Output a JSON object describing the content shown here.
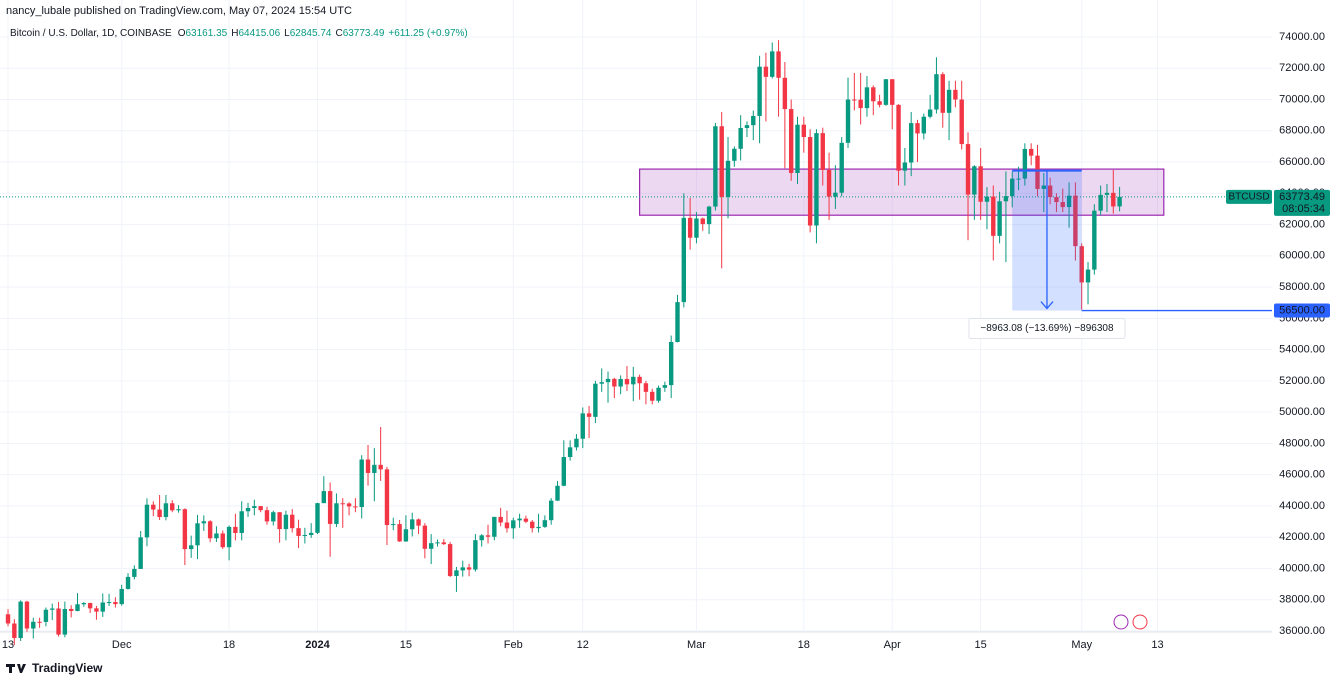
{
  "header": "nancy_lubale published on TradingView.com, May 07, 2024 15:54 UTC",
  "footer": "TradingView",
  "chart_data": {
    "type": "candlestick",
    "title": "Bitcoin / U.S. Dollar, 1D, COINBASE",
    "legend_items": [
      {
        "label": "O",
        "value": 63161.35
      },
      {
        "label": "H",
        "value": 64415.06
      },
      {
        "label": "L",
        "value": 62845.74
      },
      {
        "label": "C",
        "value": 63773.49
      }
    ],
    "change": "+611.25 (+0.97%)",
    "up_color": "#089981",
    "down_color": "#f23645",
    "grid": true,
    "xlim": [
      -1.27,
      200.13
    ],
    "ylim": [
      35936,
      76367
    ],
    "xticks": [
      {
        "value": 0,
        "label": "13"
      },
      {
        "value": 18,
        "label": "Dec"
      },
      {
        "value": 35,
        "label": "18"
      },
      {
        "value": 49,
        "label": "2024"
      },
      {
        "value": 63,
        "label": "15"
      },
      {
        "value": 80,
        "label": "Feb"
      },
      {
        "value": 91,
        "label": "12"
      },
      {
        "value": 109,
        "label": "Mar"
      },
      {
        "value": 126,
        "label": "18"
      },
      {
        "value": 140,
        "label": "Apr"
      },
      {
        "value": 154,
        "label": "15"
      },
      {
        "value": 170,
        "label": "May"
      },
      {
        "value": 182,
        "label": "13"
      }
    ],
    "yticks": [
      {
        "value": 36000,
        "label": "36000.00"
      },
      {
        "value": 38000,
        "label": "38000.00"
      },
      {
        "value": 40000,
        "label": "40000.00"
      },
      {
        "value": 42000,
        "label": "42000.00"
      },
      {
        "value": 44000,
        "label": "44000.00"
      },
      {
        "value": 46000,
        "label": "46000.00"
      },
      {
        "value": 48000,
        "label": "48000.00"
      },
      {
        "value": 50000,
        "label": "50000.00"
      },
      {
        "value": 52000,
        "label": "52000.00"
      },
      {
        "value": 54000,
        "label": "54000.00"
      },
      {
        "value": 56000,
        "label": "56000.00"
      },
      {
        "value": 58000,
        "label": "58000.00"
      },
      {
        "value": 60000,
        "label": "60000.00"
      },
      {
        "value": 62000,
        "label": "62000.00"
      },
      {
        "value": 64000,
        "label": "64000.00"
      },
      {
        "value": 66000,
        "label": "66000.00"
      },
      {
        "value": 68000,
        "label": "68000.00"
      },
      {
        "value": 70000,
        "label": "70000.00"
      },
      {
        "value": 72000,
        "label": "72000.00"
      },
      {
        "value": 74000,
        "label": "74000.00"
      }
    ],
    "x": [
      0,
      1,
      2,
      3,
      4,
      5,
      6,
      7,
      8,
      9,
      10,
      11,
      12,
      13,
      14,
      15,
      16,
      17,
      18,
      19,
      20,
      21,
      22,
      23,
      24,
      25,
      26,
      27,
      28,
      29,
      30,
      31,
      32,
      33,
      34,
      35,
      36,
      37,
      38,
      39,
      40,
      41,
      42,
      43,
      44,
      45,
      46,
      47,
      48,
      49,
      50,
      51,
      52,
      53,
      54,
      55,
      56,
      57,
      58,
      59,
      60,
      61,
      62,
      63,
      64,
      65,
      66,
      67,
      68,
      69,
      70,
      71,
      72,
      73,
      74,
      75,
      76,
      77,
      78,
      79,
      80,
      81,
      82,
      83,
      84,
      85,
      86,
      87,
      88,
      89,
      90,
      91,
      92,
      93,
      94,
      95,
      96,
      97,
      98,
      99,
      100,
      101,
      102,
      103,
      104,
      105,
      106,
      107,
      108,
      109,
      110,
      111,
      112,
      113,
      114,
      115,
      116,
      117,
      118,
      119,
      120,
      121,
      122,
      123,
      124,
      125,
      126,
      127,
      128,
      129,
      130,
      131,
      132,
      133,
      134,
      135,
      136,
      137,
      138,
      139,
      140,
      141,
      142,
      143,
      144,
      145,
      146,
      147,
      148,
      149,
      150,
      151,
      152,
      153,
      154,
      155,
      156,
      157,
      158,
      159,
      160,
      161,
      162,
      163,
      164,
      165,
      166,
      167,
      168,
      169,
      170,
      171,
      172,
      173,
      174,
      175,
      176
    ],
    "ohlc": [
      [
        37070,
        37400,
        36300,
        36480
      ],
      [
        36480,
        36760,
        35100,
        35550
      ],
      [
        35550,
        37960,
        35360,
        37880
      ],
      [
        37880,
        37930,
        35950,
        36160
      ],
      [
        36160,
        36850,
        35520,
        36590
      ],
      [
        36590,
        36850,
        36200,
        36580
      ],
      [
        36580,
        37500,
        36300,
        37360
      ],
      [
        37360,
        37750,
        36700,
        37440
      ],
      [
        37440,
        37860,
        35650,
        35770
      ],
      [
        35770,
        37880,
        35600,
        37410
      ],
      [
        37410,
        37650,
        36870,
        37280
      ],
      [
        37280,
        38420,
        37260,
        37710
      ],
      [
        37710,
        37850,
        37550,
        37790
      ],
      [
        37790,
        37810,
        37150,
        37450
      ],
      [
        37450,
        37600,
        36720,
        37240
      ],
      [
        37240,
        38400,
        36900,
        37820
      ],
      [
        37820,
        38380,
        37600,
        37850
      ],
      [
        37850,
        38160,
        37500,
        37720
      ],
      [
        37720,
        38960,
        37620,
        38690
      ],
      [
        38690,
        39700,
        38650,
        39460
      ],
      [
        39460,
        40200,
        39300,
        39970
      ],
      [
        39970,
        42400,
        39970,
        41990
      ],
      [
        41990,
        44490,
        41420,
        44080
      ],
      [
        44080,
        44300,
        43350,
        43770
      ],
      [
        43770,
        44700,
        43100,
        43290
      ],
      [
        43290,
        44700,
        43080,
        44170
      ],
      [
        44170,
        44370,
        43600,
        43720
      ],
      [
        43720,
        44050,
        43570,
        43790
      ],
      [
        43790,
        43850,
        40220,
        41240
      ],
      [
        41240,
        42100,
        40680,
        41480
      ],
      [
        41480,
        43430,
        40600,
        42890
      ],
      [
        42890,
        43400,
        42400,
        43020
      ],
      [
        43020,
        43090,
        41680,
        41930
      ],
      [
        41930,
        42700,
        41700,
        42240
      ],
      [
        42240,
        42430,
        41250,
        41360
      ],
      [
        41360,
        42750,
        40520,
        42660
      ],
      [
        42660,
        43500,
        41800,
        42270
      ],
      [
        42270,
        44300,
        41800,
        43660
      ],
      [
        43660,
        44200,
        43300,
        43870
      ],
      [
        43870,
        44400,
        43400,
        43990
      ],
      [
        43990,
        44000,
        43600,
        43730
      ],
      [
        43730,
        43950,
        42800,
        43010
      ],
      [
        43010,
        43700,
        42750,
        43600
      ],
      [
        43600,
        43600,
        41650,
        42520
      ],
      [
        42520,
        43700,
        41800,
        43440
      ],
      [
        43440,
        43800,
        42300,
        42580
      ],
      [
        42580,
        43120,
        41300,
        42080
      ],
      [
        42080,
        42600,
        41600,
        42140
      ],
      [
        42140,
        42900,
        41960,
        42280
      ],
      [
        42280,
        44200,
        42200,
        44180
      ],
      [
        44180,
        45900,
        44180,
        44950
      ],
      [
        44950,
        45500,
        40750,
        42850
      ],
      [
        42850,
        44800,
        42650,
        44170
      ],
      [
        44170,
        44500,
        42600,
        44160
      ],
      [
        44160,
        44230,
        43400,
        43970
      ],
      [
        43970,
        44500,
        43600,
        43930
      ],
      [
        43930,
        47250,
        43200,
        46970
      ],
      [
        46970,
        47900,
        45300,
        46110
      ],
      [
        46110,
        47700,
        44300,
        46630
      ],
      [
        46630,
        49050,
        45600,
        46340
      ],
      [
        46340,
        46500,
        41500,
        42780
      ],
      [
        42780,
        43250,
        42450,
        42840
      ],
      [
        42840,
        43100,
        41700,
        41730
      ],
      [
        41730,
        43400,
        41700,
        42510
      ],
      [
        42510,
        43570,
        42050,
        43140
      ],
      [
        43140,
        43200,
        42200,
        42740
      ],
      [
        42740,
        42900,
        40650,
        41260
      ],
      [
        41260,
        42200,
        40280,
        41620
      ],
      [
        41620,
        41850,
        41400,
        41670
      ],
      [
        41670,
        41880,
        41500,
        41560
      ],
      [
        41560,
        41700,
        39450,
        39520
      ],
      [
        39520,
        40100,
        38500,
        39880
      ],
      [
        39880,
        40500,
        39480,
        40070
      ],
      [
        40070,
        40300,
        39500,
        39930
      ],
      [
        39930,
        42200,
        39800,
        41810
      ],
      [
        41810,
        42200,
        41400,
        42120
      ],
      [
        42120,
        42800,
        41600,
        42030
      ],
      [
        42030,
        43300,
        41800,
        43300
      ],
      [
        43300,
        43880,
        42700,
        42940
      ],
      [
        42940,
        43700,
        42300,
        42570
      ],
      [
        42570,
        43250,
        41900,
        43080
      ],
      [
        43080,
        43500,
        42600,
        43190
      ],
      [
        43190,
        43380,
        42900,
        42990
      ],
      [
        42990,
        43100,
        42300,
        42580
      ],
      [
        42580,
        43500,
        42300,
        42660
      ],
      [
        42660,
        43400,
        42600,
        43090
      ],
      [
        43090,
        44500,
        42800,
        44340
      ],
      [
        44340,
        45600,
        44320,
        45290
      ],
      [
        45290,
        48200,
        45260,
        47130
      ],
      [
        47130,
        48200,
        46900,
        47750
      ],
      [
        47750,
        48600,
        47550,
        48300
      ],
      [
        48300,
        50300,
        47700,
        49920
      ],
      [
        49920,
        50400,
        48350,
        49700
      ],
      [
        49700,
        52000,
        49300,
        51820
      ],
      [
        51820,
        52800,
        51300,
        51920
      ],
      [
        51920,
        52600,
        50600,
        52130
      ],
      [
        52130,
        52200,
        50900,
        51640
      ],
      [
        51640,
        52350,
        51150,
        52120
      ],
      [
        52120,
        52950,
        51350,
        51780
      ],
      [
        51780,
        52900,
        50700,
        52260
      ],
      [
        52260,
        52400,
        50800,
        51850
      ],
      [
        51850,
        52000,
        50500,
        51300
      ],
      [
        51300,
        51500,
        50500,
        50730
      ],
      [
        50730,
        51700,
        50600,
        51560
      ],
      [
        51560,
        51950,
        51300,
        51730
      ],
      [
        51730,
        54900,
        50900,
        54490
      ],
      [
        54490,
        57500,
        54460,
        57040
      ],
      [
        57040,
        64000,
        56700,
        62430
      ],
      [
        62430,
        63700,
        60400,
        61160
      ],
      [
        61160,
        62800,
        60800,
        62390
      ],
      [
        62390,
        62450,
        61600,
        62030
      ],
      [
        62030,
        63200,
        61400,
        63150
      ],
      [
        63150,
        68500,
        62900,
        68290
      ],
      [
        68290,
        69200,
        59200,
        63770
      ],
      [
        63770,
        67600,
        62400,
        66080
      ],
      [
        66080,
        67000,
        65700,
        66850
      ],
      [
        66850,
        69000,
        66100,
        68180
      ],
      [
        68180,
        68600,
        67600,
        68360
      ],
      [
        68360,
        69300,
        67400,
        68950
      ],
      [
        68950,
        72800,
        67200,
        72100
      ],
      [
        72100,
        73000,
        68600,
        71450
      ],
      [
        71450,
        73650,
        71350,
        73080
      ],
      [
        73080,
        73800,
        68900,
        71390
      ],
      [
        71390,
        72400,
        65600,
        69390
      ],
      [
        69390,
        70000,
        64800,
        65300
      ],
      [
        65300,
        68900,
        64600,
        68390
      ],
      [
        68390,
        68900,
        66600,
        67600
      ],
      [
        67600,
        68100,
        61500,
        61940
      ],
      [
        61940,
        68100,
        60800,
        67850
      ],
      [
        67850,
        68200,
        64500,
        65500
      ],
      [
        65500,
        66600,
        62300,
        63790
      ],
      [
        63790,
        65800,
        63000,
        64040
      ],
      [
        64040,
        67600,
        63800,
        67230
      ],
      [
        67230,
        71400,
        66900,
        70000
      ],
      [
        70000,
        71700,
        69300,
        69990
      ],
      [
        69990,
        71700,
        68400,
        69450
      ],
      [
        69450,
        71500,
        68900,
        70780
      ],
      [
        70780,
        70900,
        69000,
        69890
      ],
      [
        69890,
        70300,
        69500,
        69660
      ],
      [
        69660,
        71300,
        69600,
        71300
      ],
      [
        71300,
        71300,
        68100,
        69660
      ],
      [
        69660,
        69700,
        64500,
        65450
      ],
      [
        65450,
        66900,
        64500,
        65970
      ],
      [
        65970,
        69200,
        65100,
        68490
      ],
      [
        68490,
        68700,
        66000,
        67830
      ],
      [
        67830,
        69100,
        67450,
        68900
      ],
      [
        68900,
        70300,
        68800,
        69360
      ],
      [
        69360,
        72700,
        69100,
        71620
      ],
      [
        71620,
        71750,
        68200,
        69150
      ],
      [
        69150,
        71200,
        67400,
        70620
      ],
      [
        70620,
        71200,
        69500,
        70000
      ],
      [
        70000,
        71200,
        66800,
        67150
      ],
      [
        67150,
        67900,
        61000,
        63920
      ],
      [
        63920,
        65800,
        62300,
        65730
      ],
      [
        65730,
        66900,
        62300,
        63460
      ],
      [
        63460,
        64400,
        61700,
        63790
      ],
      [
        63790,
        64500,
        59700,
        61280
      ],
      [
        61280,
        64100,
        60800,
        63490
      ],
      [
        63490,
        65400,
        59600,
        63820
      ],
      [
        63820,
        65400,
        63100,
        64940
      ],
      [
        64940,
        65700,
        64200,
        64940
      ],
      [
        64940,
        67200,
        64500,
        66840
      ],
      [
        66840,
        67200,
        65800,
        66410
      ],
      [
        66410,
        67100,
        63800,
        64280
      ],
      [
        64280,
        65300,
        62800,
        64500
      ],
      [
        64500,
        65000,
        63300,
        63760
      ],
      [
        63760,
        64000,
        62800,
        63440
      ],
      [
        63440,
        64300,
        62800,
        63120
      ],
      [
        63120,
        64700,
        61800,
        63850
      ],
      [
        63850,
        64700,
        59700,
        60620
      ],
      [
        60620,
        60800,
        56550,
        58300
      ],
      [
        58300,
        59600,
        56900,
        59120
      ],
      [
        59120,
        63300,
        58800,
        62890
      ],
      [
        62890,
        64500,
        62600,
        63900
      ],
      [
        63900,
        64600,
        62800,
        64030
      ],
      [
        64030,
        65500,
        62700,
        63160
      ],
      [
        63161.35,
        64415.06,
        62845.74,
        63773.49
      ]
    ],
    "zone": {
      "x": [
        100,
        183
      ],
      "y": [
        62600,
        65550
      ],
      "color": "#9c27b0"
    },
    "measure": {
      "x": [
        159,
        170
      ],
      "y": [
        65450,
        56500
      ],
      "label": "−8963.08 (−13.69%) −896308",
      "color": "#2962ff"
    },
    "price_line": {
      "value": 56500,
      "label": "56500.00",
      "color": "#2962ff"
    },
    "last_price": {
      "symbol": "BTCUSD",
      "value": 63773.49,
      "label": "63773.49",
      "countdown": "08:05:34"
    }
  }
}
